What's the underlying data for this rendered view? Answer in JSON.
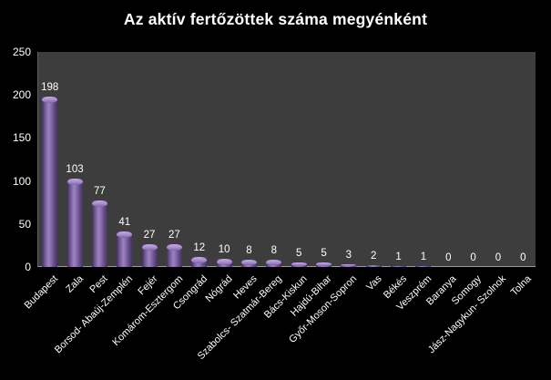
{
  "title": "Az aktív fertőzöttek száma megyénként",
  "colors": {
    "background": "#000000",
    "plot_background": "#3d3d3d",
    "bar_main": "#8064a2",
    "bar_highlight": "#9c82c0",
    "bar_shadow": "#433357",
    "bar_cap_light": "#c3addc",
    "axis_line": "#9a9a9a",
    "text": "#ffffff"
  },
  "chart_data": {
    "type": "bar",
    "title": "Az aktív fertőzöttek száma megyénként",
    "categories": [
      "Budapest",
      "Zala",
      "Pest",
      "Borsod- Abaúj-Zemplén",
      "Fejér",
      "Komárom-Esztergom",
      "Csongrád",
      "Nógrád",
      "Heves",
      "Szabolcs- Szatmár-Bereg",
      "Bács-Kiskun",
      "Hajdú-Bihar",
      "Győr-Moson-Sopron",
      "Vas",
      "Békés",
      "Veszprém",
      "Baranya",
      "Somogy",
      "Jász-Nagykun- Szolnok",
      "Tolna"
    ],
    "values": [
      198,
      103,
      77,
      41,
      27,
      27,
      12,
      10,
      8,
      8,
      5,
      5,
      3,
      2,
      1,
      1,
      0,
      0,
      0,
      0
    ],
    "xlabel": "",
    "ylabel": "",
    "ylim": [
      0,
      250
    ],
    "yticks": [
      0,
      50,
      100,
      150,
      200,
      250
    ],
    "grid": false,
    "legend": "none",
    "data_labels": true,
    "bar_style": "3d-cylinder",
    "x_label_rotation": 45
  }
}
